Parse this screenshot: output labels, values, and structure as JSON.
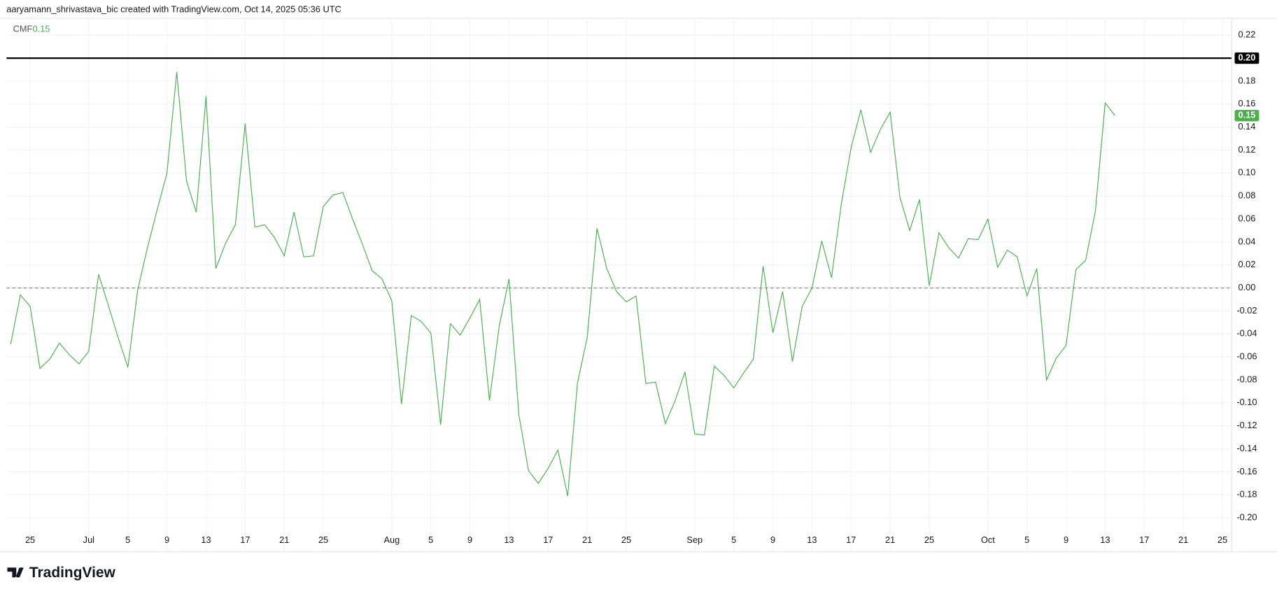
{
  "watermark": "aaryamann_shrivastava_bic created with TradingView.com, Oct 14, 2025 05:36 UTC",
  "brand": "TradingView",
  "chart_data": {
    "type": "line",
    "categories": [
      null,
      null,
      "25",
      null,
      null,
      null,
      null,
      null,
      "Jul",
      null,
      null,
      null,
      "5",
      null,
      null,
      null,
      "9",
      null,
      null,
      null,
      "13",
      null,
      null,
      null,
      "17",
      null,
      null,
      null,
      "21",
      null,
      null,
      null,
      "25",
      null,
      null,
      null,
      null,
      null,
      null,
      "Aug",
      null,
      null,
      null,
      "5",
      null,
      null,
      null,
      "9",
      null,
      null,
      null,
      "13",
      null,
      null,
      null,
      "17",
      null,
      null,
      null,
      "21",
      null,
      null,
      null,
      "25",
      null,
      null,
      null,
      null,
      null,
      null,
      "Sep",
      null,
      null,
      null,
      "5",
      null,
      null,
      null,
      "9",
      null,
      null,
      null,
      "13",
      null,
      null,
      null,
      "17",
      null,
      null,
      null,
      "21",
      null,
      null,
      null,
      "25",
      null,
      null,
      null,
      null,
      null,
      "Oct",
      null,
      null,
      null,
      "5",
      null,
      null,
      null,
      "9",
      null,
      null,
      null,
      "13",
      null,
      null,
      null,
      "17",
      null,
      null,
      null,
      "21",
      null,
      null,
      null,
      "25",
      null
    ],
    "series": [
      {
        "name": "CMF",
        "color": "#4caf50",
        "values": [
          -0.049,
          -0.006,
          -0.016,
          -0.07,
          -0.062,
          -0.048,
          -0.058,
          -0.066,
          -0.055,
          0.012,
          -0.015,
          -0.043,
          -0.069,
          -0.002,
          0.035,
          0.068,
          0.1,
          0.188,
          0.093,
          0.066,
          0.167,
          0.017,
          0.039,
          0.055,
          0.143,
          0.053,
          0.055,
          0.044,
          0.028,
          0.066,
          0.027,
          0.028,
          0.071,
          0.081,
          0.083,
          0.06,
          0.038,
          0.015,
          0.008,
          -0.011,
          -0.101,
          -0.024,
          -0.029,
          -0.039,
          -0.119,
          -0.031,
          -0.041,
          -0.026,
          -0.01,
          -0.098,
          -0.033,
          0.008,
          -0.11,
          -0.159,
          -0.17,
          -0.157,
          -0.141,
          -0.181,
          -0.083,
          -0.043,
          0.052,
          0.017,
          -0.003,
          -0.012,
          -0.007,
          -0.083,
          -0.082,
          -0.118,
          -0.098,
          -0.073,
          -0.127,
          -0.128,
          -0.068,
          -0.076,
          -0.087,
          -0.074,
          -0.062,
          0.019,
          -0.039,
          -0.003,
          -0.064,
          -0.016,
          0.0,
          0.041,
          0.009,
          0.073,
          0.122,
          0.155,
          0.118,
          0.138,
          0.153,
          0.079,
          0.05,
          0.077,
          0.002,
          0.048,
          0.035,
          0.026,
          0.043,
          0.042,
          0.06,
          0.018,
          0.033,
          0.027,
          -0.007,
          0.017,
          -0.08,
          -0.061,
          -0.05,
          0.016,
          0.024,
          0.067,
          0.161,
          0.15,
          null,
          null,
          null,
          null,
          null,
          null,
          null,
          null,
          null,
          null,
          null,
          null
        ]
      }
    ],
    "last_label": {
      "value": 0.15,
      "label": "0.15"
    },
    "hline": {
      "value": 0.2,
      "label": "0.20",
      "color": "#000000"
    },
    "baseline": 0,
    "ylim": [
      -0.21,
      0.235
    ],
    "yticks": [
      {
        "value": -0.2,
        "label": "-0.20"
      },
      -0.18,
      -0.16,
      -0.14,
      -0.12,
      {
        "value": -0.1,
        "label": "-0.10"
      },
      -0.08,
      -0.06,
      -0.04,
      -0.02,
      {
        "value": 0,
        "label": "0.00"
      },
      0.02,
      0.04,
      0.06,
      0.08,
      {
        "value": 0.1,
        "label": "0.10"
      },
      0.12,
      0.14,
      0.16,
      0.18,
      {
        "value": 0.2,
        "label": "0.20"
      },
      0.22
    ],
    "grid": true
  }
}
